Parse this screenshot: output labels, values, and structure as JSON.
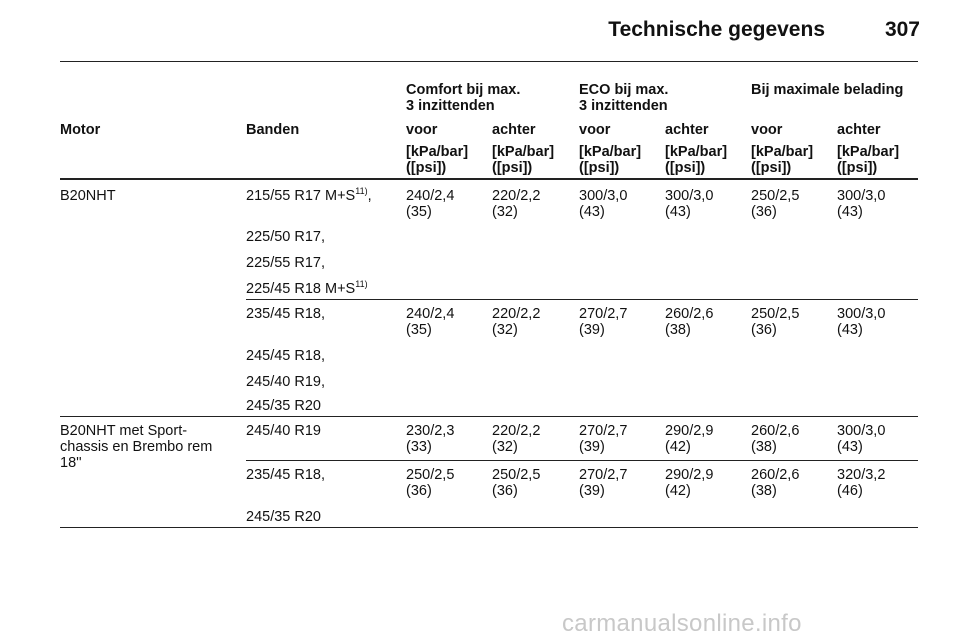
{
  "header": {
    "title": "Technische gegevens",
    "page_number": "307"
  },
  "groups": {
    "comfort": [
      "Comfort bij max.",
      "3 inzittenden"
    ],
    "eco": [
      "ECO bij max.",
      "3 inzittenden"
    ],
    "max_load": "Bij maximale belading"
  },
  "columns": {
    "motor": "Motor",
    "tyres": "Banden",
    "front": "voor",
    "rear": "achter",
    "unit_kpa": "[kPa/bar]",
    "unit_psi": "([psi])"
  },
  "rows": [
    {
      "motor": [],
      "motor_label": "B20NHT",
      "tyres": [
        {
          "text": "215/55 R17 M+S",
          "sup": "11)",
          "suffix": ","
        },
        {
          "text": "225/50 R17,",
          "sup": "",
          "suffix": ""
        },
        {
          "text": "225/55 R17,",
          "sup": "",
          "suffix": ""
        },
        {
          "text": "225/45 R18 M+S",
          "sup": "11)",
          "suffix": ""
        }
      ],
      "values": [
        [
          "240/2,4",
          "(35)"
        ],
        [
          "220/2,2",
          "(32)"
        ],
        [
          "300/3,0",
          "(43)"
        ],
        [
          "300/3,0",
          "(43)"
        ],
        [
          "250/2,5",
          "(36)"
        ],
        [
          "300/3,0",
          "(43)"
        ]
      ]
    },
    {
      "tyres": [
        {
          "text": "235/45 R18,",
          "sup": "",
          "suffix": ""
        },
        {
          "text": "245/45 R18,",
          "sup": "",
          "suffix": ""
        },
        {
          "text": "245/40 R19,",
          "sup": "",
          "suffix": ""
        },
        {
          "text": "245/35 R20",
          "sup": "",
          "suffix": ""
        }
      ],
      "values": [
        [
          "240/2,4",
          "(35)"
        ],
        [
          "220/2,2",
          "(32)"
        ],
        [
          "270/2,7",
          "(39)"
        ],
        [
          "260/2,6",
          "(38)"
        ],
        [
          "250/2,5",
          "(36)"
        ],
        [
          "300/3,0",
          "(43)"
        ]
      ]
    },
    {
      "motor": [
        "B20NHT met Sport-",
        "chassis en Brembo rem",
        "18''"
      ],
      "tyres": [
        {
          "text": "245/40 R19",
          "sup": "",
          "suffix": ""
        }
      ],
      "values": [
        [
          "230/2,3",
          "(33)"
        ],
        [
          "220/2,2",
          "(32)"
        ],
        [
          "270/2,7",
          "(39)"
        ],
        [
          "290/2,9",
          "(42)"
        ],
        [
          "260/2,6",
          "(38)"
        ],
        [
          "300/3,0",
          "(43)"
        ]
      ]
    },
    {
      "tyres": [
        {
          "text": "235/45 R18,",
          "sup": "",
          "suffix": ""
        },
        {
          "text": "245/35 R20",
          "sup": "",
          "suffix": ""
        }
      ],
      "values": [
        [
          "250/2,5",
          "(36)"
        ],
        [
          "250/2,5",
          "(36)"
        ],
        [
          "270/2,7",
          "(39)"
        ],
        [
          "290/2,9",
          "(42)"
        ],
        [
          "260/2,6",
          "(38)"
        ],
        [
          "320/3,2",
          "(46)"
        ]
      ]
    }
  ],
  "watermark": "carmanualsonline.info"
}
